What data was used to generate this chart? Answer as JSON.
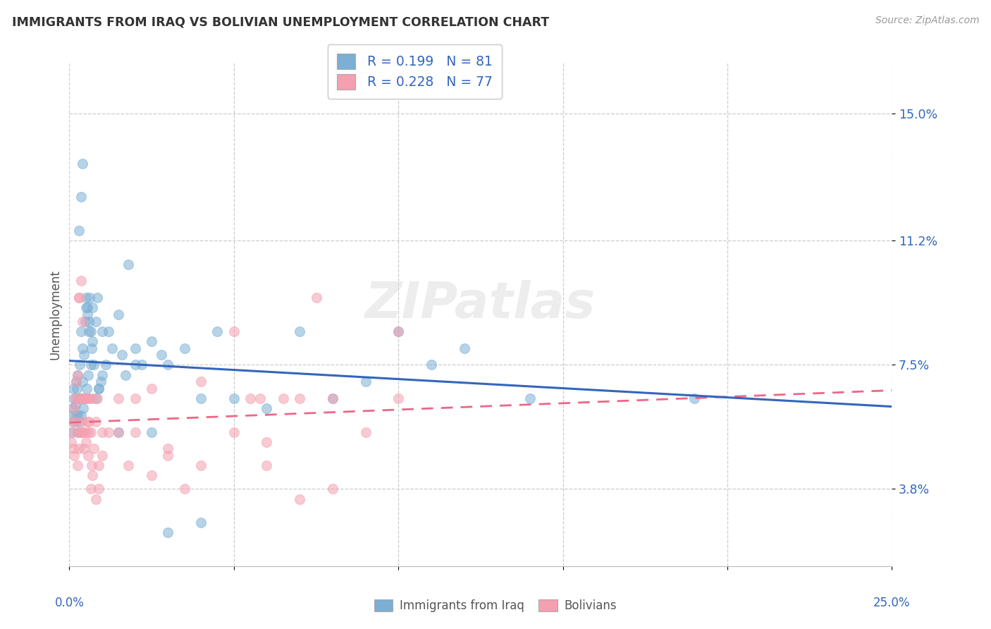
{
  "title": "IMMIGRANTS FROM IRAQ VS BOLIVIAN UNEMPLOYMENT CORRELATION CHART",
  "source": "Source: ZipAtlas.com",
  "ylabel": "Unemployment",
  "y_ticks": [
    3.8,
    7.5,
    11.2,
    15.0
  ],
  "x_min": 0.0,
  "x_max": 25.0,
  "y_min": 1.5,
  "y_max": 16.5,
  "series1_label": "Immigrants from Iraq",
  "series2_label": "Bolivians",
  "series1_R": "0.199",
  "series1_N": "81",
  "series2_R": "0.228",
  "series2_N": "77",
  "color_blue": "#7BAFD4",
  "color_pink": "#F4A0B0",
  "color_blue_line": "#3366BB",
  "color_pink_line": "#EE6688",
  "legend_text_color": "#3366BB",
  "watermark": "ZIPatlas",
  "series1_x": [
    0.05,
    0.08,
    0.1,
    0.12,
    0.15,
    0.15,
    0.18,
    0.2,
    0.2,
    0.22,
    0.25,
    0.25,
    0.28,
    0.3,
    0.3,
    0.32,
    0.35,
    0.35,
    0.38,
    0.4,
    0.4,
    0.42,
    0.45,
    0.45,
    0.48,
    0.5,
    0.52,
    0.55,
    0.58,
    0.6,
    0.62,
    0.65,
    0.68,
    0.7,
    0.75,
    0.8,
    0.85,
    0.9,
    0.95,
    1.0,
    1.1,
    1.2,
    1.3,
    1.5,
    1.6,
    1.7,
    1.8,
    2.0,
    2.2,
    2.5,
    2.8,
    3.0,
    3.5,
    4.0,
    4.5,
    5.0,
    6.0,
    7.0,
    8.0,
    9.0,
    10.0,
    11.0,
    12.0,
    14.0,
    19.0,
    0.3,
    0.35,
    0.4,
    0.5,
    0.55,
    0.6,
    0.65,
    0.7,
    0.8,
    0.9,
    1.0,
    1.5,
    2.0,
    2.5,
    3.0,
    4.0
  ],
  "series1_y": [
    6.0,
    5.5,
    6.2,
    6.8,
    5.8,
    6.5,
    6.3,
    6.0,
    7.0,
    6.8,
    5.5,
    7.2,
    6.0,
    6.5,
    5.8,
    7.5,
    6.0,
    8.5,
    6.5,
    7.0,
    8.0,
    6.2,
    7.8,
    6.5,
    8.8,
    9.2,
    6.8,
    9.0,
    7.2,
    8.5,
    9.5,
    7.5,
    8.0,
    8.2,
    7.5,
    8.8,
    9.5,
    6.8,
    7.0,
    7.2,
    7.5,
    8.5,
    8.0,
    9.0,
    7.8,
    7.2,
    10.5,
    8.0,
    7.5,
    8.2,
    7.8,
    7.5,
    8.0,
    6.5,
    8.5,
    6.5,
    6.2,
    8.5,
    6.5,
    7.0,
    8.5,
    7.5,
    8.0,
    6.5,
    6.5,
    11.5,
    12.5,
    13.5,
    9.5,
    9.2,
    8.8,
    8.5,
    9.2,
    6.5,
    6.8,
    8.5,
    5.5,
    7.5,
    5.5,
    2.5,
    2.8
  ],
  "series2_x": [
    0.05,
    0.08,
    0.1,
    0.12,
    0.15,
    0.15,
    0.18,
    0.2,
    0.2,
    0.22,
    0.25,
    0.25,
    0.28,
    0.3,
    0.3,
    0.32,
    0.35,
    0.35,
    0.38,
    0.4,
    0.4,
    0.42,
    0.45,
    0.48,
    0.5,
    0.52,
    0.55,
    0.58,
    0.6,
    0.62,
    0.65,
    0.68,
    0.7,
    0.75,
    0.8,
    0.85,
    0.9,
    1.0,
    1.2,
    1.5,
    1.8,
    2.0,
    2.5,
    3.0,
    3.5,
    4.0,
    5.0,
    5.5,
    6.0,
    7.0,
    8.0,
    9.0,
    10.0,
    0.3,
    0.35,
    0.4,
    0.5,
    0.55,
    0.6,
    0.65,
    0.7,
    0.8,
    0.9,
    1.0,
    1.5,
    2.0,
    2.5,
    3.0,
    4.0,
    5.0,
    6.0,
    7.0,
    8.0,
    10.0,
    5.8,
    6.5,
    7.5
  ],
  "series2_y": [
    5.2,
    5.8,
    5.5,
    5.0,
    4.8,
    6.2,
    6.5,
    5.8,
    7.0,
    6.5,
    4.5,
    7.2,
    5.5,
    5.0,
    9.5,
    6.5,
    5.5,
    10.0,
    5.8,
    5.5,
    8.8,
    6.5,
    5.0,
    5.5,
    5.2,
    6.5,
    5.8,
    4.8,
    5.5,
    6.5,
    5.5,
    4.5,
    6.5,
    5.0,
    5.8,
    6.5,
    4.5,
    5.5,
    5.5,
    6.5,
    4.5,
    5.5,
    4.2,
    4.8,
    3.8,
    4.5,
    5.5,
    6.5,
    4.5,
    6.5,
    3.8,
    5.5,
    6.5,
    9.5,
    5.5,
    6.5,
    6.5,
    6.5,
    5.8,
    3.8,
    4.2,
    3.5,
    3.8,
    4.8,
    5.5,
    6.5,
    6.8,
    5.0,
    7.0,
    8.5,
    5.2,
    3.5,
    6.5,
    8.5,
    6.5,
    6.5,
    9.5
  ]
}
